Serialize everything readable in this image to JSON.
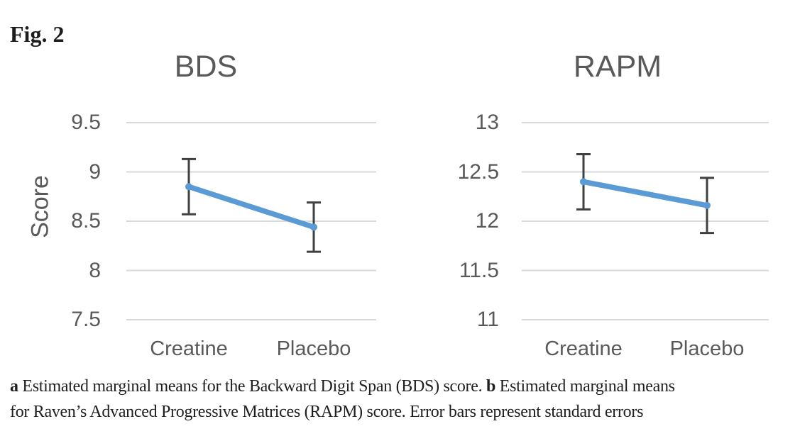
{
  "figure": {
    "label": "Fig. 2",
    "caption_lines": [
      {
        "segments": [
          {
            "text": "a",
            "bold": true
          },
          {
            "text": " Estimated marginal means for the Backward Digit Span (BDS) score. ",
            "bold": false
          },
          {
            "text": "b",
            "bold": true
          },
          {
            "text": " Estimated marginal means",
            "bold": false
          }
        ]
      },
      {
        "segments": [
          {
            "text": "for Raven’s Advanced Progressive Matrices (RAPM) score. Error bars represent standard errors",
            "bold": false
          }
        ]
      }
    ]
  },
  "colors": {
    "line": "#5B9BD5",
    "marker": "#5B9BD5",
    "error_bar": "#404040",
    "gridline": "#D9D9D9",
    "axis_text": "#595959",
    "title_text": "#595959",
    "caption_text": "#1f1f1f",
    "background": "#ffffff"
  },
  "chart_data": [
    {
      "type": "line",
      "title": "BDS",
      "ylabel": "Score",
      "xlabel": "",
      "categories": [
        "Creatine",
        "Placebo"
      ],
      "series": [
        {
          "values": [
            8.85,
            8.44
          ],
          "error_plus": [
            0.28,
            0.25
          ],
          "error_minus": [
            0.28,
            0.25
          ]
        }
      ],
      "yticks": [
        9.5,
        9,
        8.5,
        8,
        7.5
      ],
      "ylim": [
        7.5,
        9.5
      ],
      "grid": true,
      "legend": "none",
      "error_bars": "standard errors"
    },
    {
      "type": "line",
      "title": "RAPM",
      "ylabel": "",
      "xlabel": "",
      "categories": [
        "Creatine",
        "Placebo"
      ],
      "series": [
        {
          "values": [
            12.4,
            12.16
          ],
          "error_plus": [
            0.28,
            0.28
          ],
          "error_minus": [
            0.28,
            0.28
          ]
        }
      ],
      "yticks": [
        13,
        12.5,
        12,
        11.5,
        11
      ],
      "ylim": [
        11,
        13
      ],
      "grid": true,
      "legend": "none",
      "error_bars": "standard errors"
    }
  ]
}
